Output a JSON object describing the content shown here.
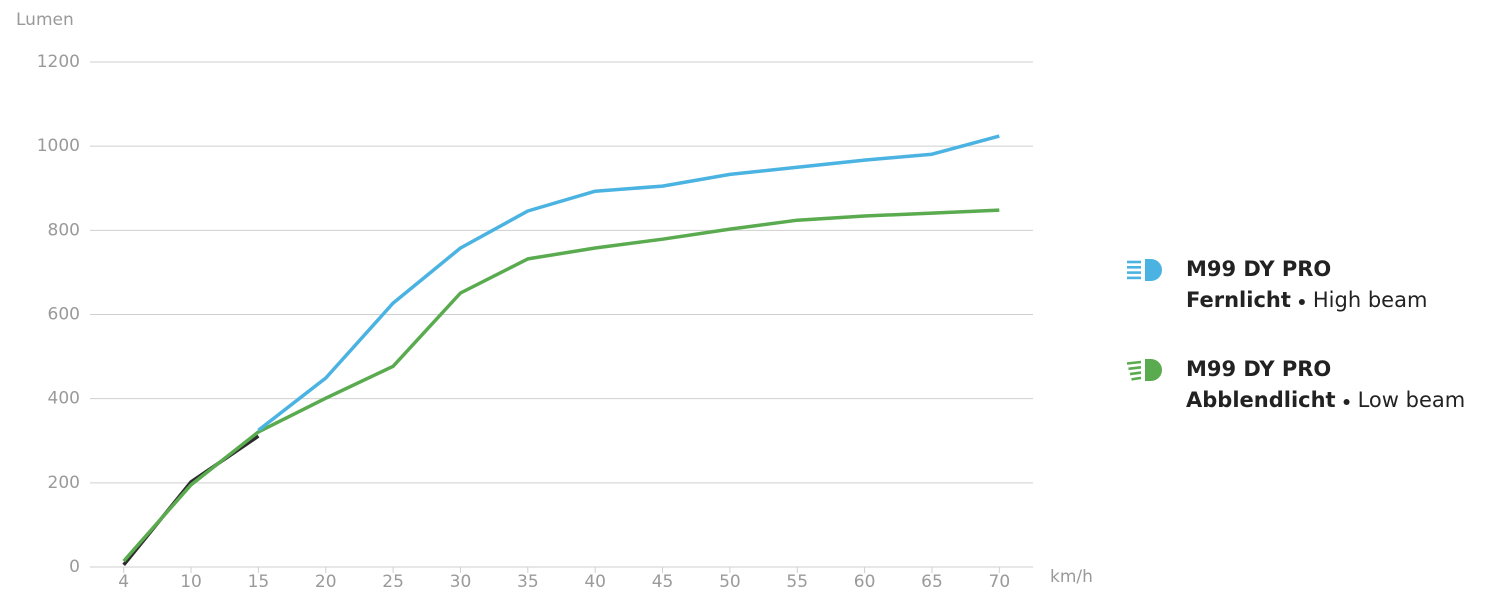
{
  "chart_data": {
    "type": "line",
    "y_label": "Lumen",
    "x_label": "km/h",
    "categories": [
      "4",
      "10",
      "15",
      "20",
      "25",
      "30",
      "35",
      "40",
      "45",
      "50",
      "55",
      "60",
      "65",
      "70"
    ],
    "series": [
      {
        "name": "M99 DY PRO",
        "label_de": "Fernlicht",
        "label_en": "High beam",
        "color": "#4bb3e2",
        "values": [
          null,
          null,
          325,
          449,
          627,
          758,
          846,
          893,
          905,
          933,
          950,
          967,
          981,
          1024
        ]
      },
      {
        "name": "M99 DY PRO",
        "label_de": "Abblendlicht",
        "label_en": "Low beam",
        "color": "#5aab4f",
        "values": [
          14,
          195,
          321,
          401,
          477,
          651,
          732,
          758,
          779,
          803,
          824,
          834,
          841,
          848
        ]
      },
      {
        "color": "#2b2b2b",
        "values": [
          5,
          202,
          311,
          null,
          null,
          null,
          null,
          null,
          null,
          null,
          null,
          null,
          null,
          null
        ]
      }
    ],
    "ylim": [
      0,
      1200
    ],
    "yticks": [
      0,
      200,
      400,
      600,
      800,
      1000,
      1200
    ],
    "grid": true
  }
}
